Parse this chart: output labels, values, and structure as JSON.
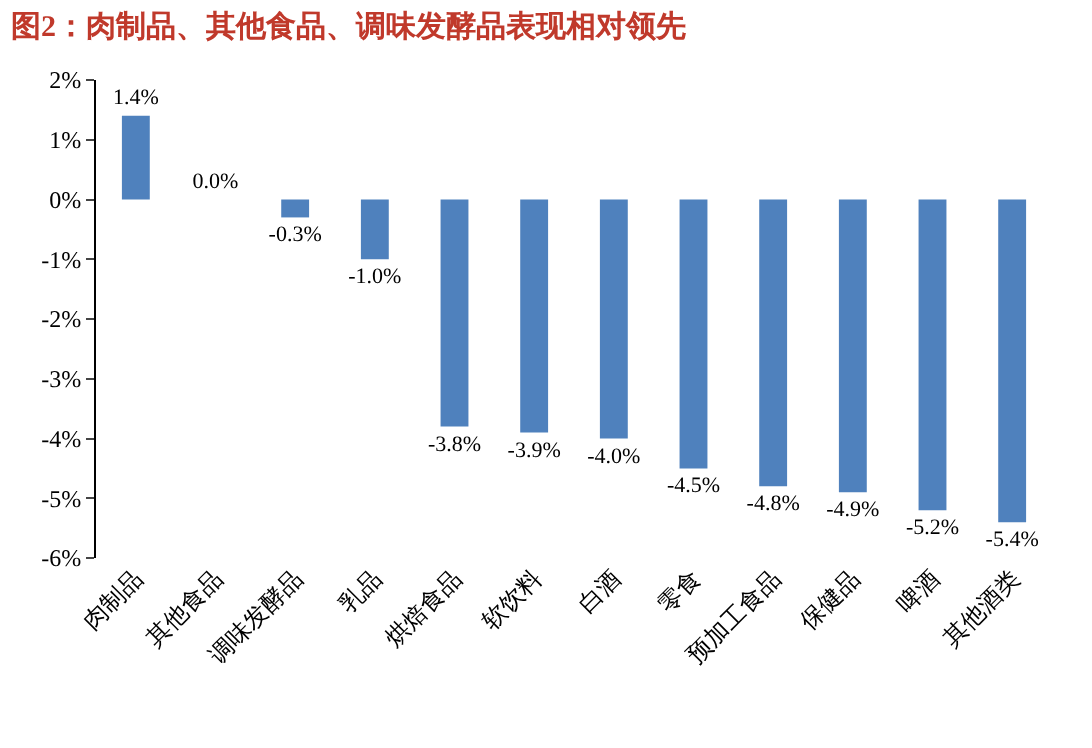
{
  "chart_data": {
    "type": "bar",
    "title": "图2：肉制品、其他食品、调味发酵品表现相对领先",
    "categories": [
      "肉制品",
      "其他食品",
      "调味发酵品",
      "乳品",
      "烘焙食品",
      "软饮料",
      "白酒",
      "零食",
      "预加工食品",
      "保健品",
      "啤酒",
      "其他酒类"
    ],
    "values": [
      1.4,
      0.0,
      -0.3,
      -1.0,
      -3.8,
      -3.9,
      -4.0,
      -4.5,
      -4.8,
      -4.9,
      -5.2,
      -5.4
    ],
    "value_labels": [
      "1.4%",
      "0.0%",
      "-0.3%",
      "-1.0%",
      "-3.8%",
      "-3.9%",
      "-4.0%",
      "-4.5%",
      "-4.8%",
      "-4.9%",
      "-5.2%",
      "-5.4%"
    ],
    "color": "#4f81bd",
    "ylim": [
      -6,
      2
    ],
    "yticks": [
      {
        "value": -6,
        "label": "-6%"
      },
      {
        "value": -5,
        "label": "-5%"
      },
      {
        "value": -4,
        "label": "-4%"
      },
      {
        "value": -3,
        "label": "-3%"
      },
      {
        "value": -2,
        "label": "-2%"
      },
      {
        "value": -1,
        "label": "-1%"
      },
      {
        "value": 0,
        "label": "0%"
      },
      {
        "value": 1,
        "label": "1%"
      },
      {
        "value": 2,
        "label": "2%"
      }
    ],
    "grid": false,
    "legend": false
  }
}
